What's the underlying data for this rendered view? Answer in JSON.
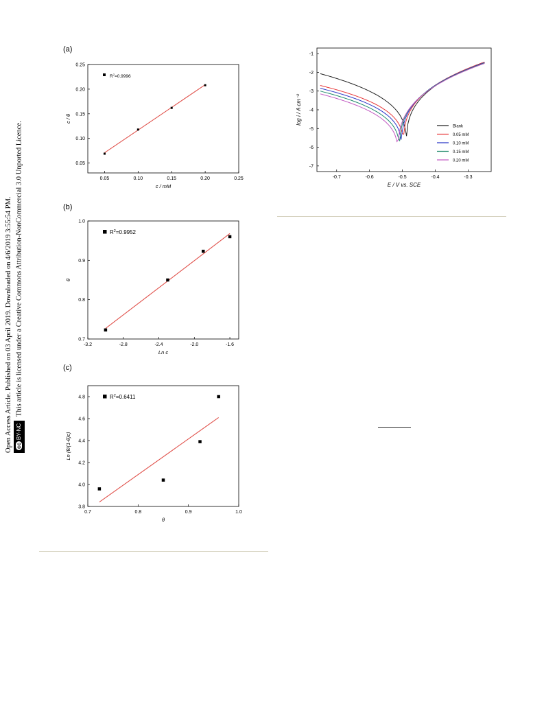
{
  "sidebar": {
    "line1": "Open Access Article. Published on 03 April 2019. Downloaded on 4/6/2019 3:55:54 PM.",
    "badge_cc": "cc",
    "badge_text": "BY-NC",
    "line2": "This article is licensed under a Creative Commons Attribution-NonCommercial 3.0 Unported Licence."
  },
  "figure_left": {
    "panels": [
      {
        "label": "(a)",
        "chart_data": {
          "type": "scatter",
          "xlabel": "c / mM",
          "ylabel": "c / θ",
          "xlim": [
            0.025,
            0.25
          ],
          "ylim": [
            0.03,
            0.25
          ],
          "xticks": [
            "0.05",
            "0.10",
            "0.15",
            "0.20",
            "0.25"
          ],
          "yticks": [
            "0.05",
            "0.10",
            "0.15",
            "0.20",
            "0.25"
          ],
          "legend": "R²=0.9996",
          "points": {
            "x": [
              0.05,
              0.1,
              0.15,
              0.2
            ],
            "y": [
              0.069,
              0.118,
              0.162,
              0.208
            ]
          },
          "fit_line": {
            "x": [
              0.05,
              0.2
            ],
            "y": [
              0.071,
              0.209
            ]
          }
        }
      },
      {
        "label": "(b)",
        "chart_data": {
          "type": "scatter",
          "xlabel": "Ln c",
          "ylabel": "θ",
          "xlim": [
            -3.2,
            -1.5
          ],
          "ylim": [
            0.7,
            1.0
          ],
          "xticks": [
            "-3.2",
            "-2.8",
            "-2.4",
            "-2.0",
            "-1.6"
          ],
          "yticks": [
            "0.7",
            "0.8",
            "0.9",
            "1.0"
          ],
          "legend": "R²=0.9952",
          "points": {
            "x": [
              -3.0,
              -2.3,
              -1.9,
              -1.6
            ],
            "y": [
              0.723,
              0.85,
              0.923,
              0.96
            ]
          },
          "fit_line": {
            "x": [
              -3.0,
              -1.6
            ],
            "y": [
              0.727,
              0.968
            ]
          }
        }
      },
      {
        "label": "(c)",
        "chart_data": {
          "type": "scatter",
          "xlabel": "θ",
          "ylabel": "Ln (θ/(1-θ)c)",
          "xlim": [
            0.7,
            1.0
          ],
          "ylim": [
            3.8,
            4.9
          ],
          "xticks": [
            "0.7",
            "0.8",
            "0.9",
            "1.0"
          ],
          "yticks": [
            "3.8",
            "4.0",
            "4.2",
            "4.4",
            "4.6",
            "4.8"
          ],
          "legend": "R²=0.6411",
          "points": {
            "x": [
              0.723,
              0.85,
              0.923,
              0.96
            ],
            "y": [
              3.96,
              4.04,
              4.39,
              4.8
            ]
          },
          "fit_line": {
            "x": [
              0.723,
              0.96
            ],
            "y": [
              3.84,
              4.61
            ]
          }
        }
      }
    ]
  },
  "figure_right": {
    "chart_data": {
      "type": "line",
      "xlabel": "E / V vs. SCE",
      "ylabel": "log i / A cm⁻²",
      "xlim": [
        -0.76,
        -0.23
      ],
      "ylim": [
        -7.3,
        -0.7
      ],
      "xticks": [
        "-0.7",
        "-0.6",
        "-0.5",
        "-0.4",
        "-0.3"
      ],
      "yticks": [
        "-1",
        "-2",
        "-3",
        "-4",
        "-5",
        "-6",
        "-7"
      ],
      "legend_position": "bottom-right",
      "series": [
        {
          "name": "Blank",
          "color": "#222222",
          "ecorr": -0.488,
          "imin": -6.0,
          "start": -2.07,
          "end": -1.45
        },
        {
          "name": "0.05 mM",
          "color": "#e8383a",
          "ecorr": -0.497,
          "imin": -6.1,
          "start": -2.7,
          "end": -1.45
        },
        {
          "name": "0.10 mM",
          "color": "#2a37c8",
          "ecorr": -0.503,
          "imin": -6.2,
          "start": -2.85,
          "end": -1.48
        },
        {
          "name": "0.15 mM",
          "color": "#1f8a6a",
          "ecorr": -0.509,
          "imin": -6.35,
          "start": -3.0,
          "end": -1.5
        },
        {
          "name": "0.20 mM",
          "color": "#c25ac2",
          "ecorr": -0.514,
          "imin": -6.5,
          "start": -3.15,
          "end": -1.52
        }
      ]
    }
  }
}
